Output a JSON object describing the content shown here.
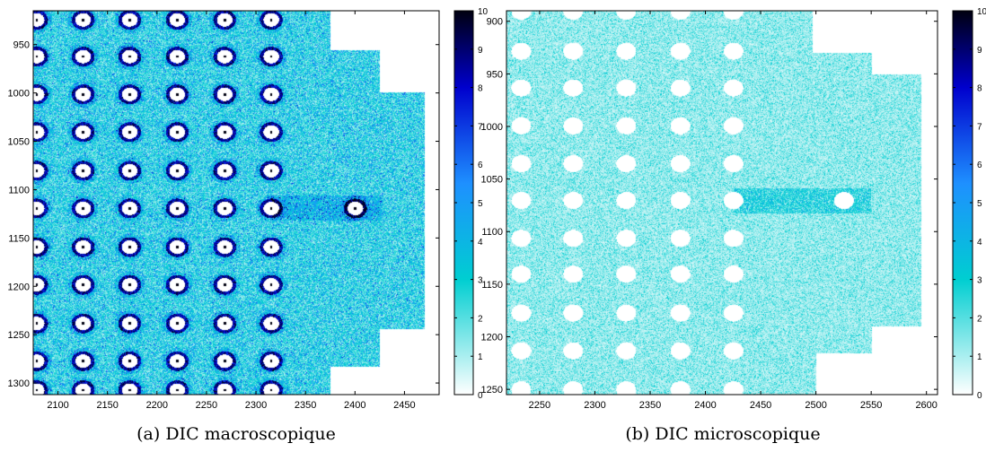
{
  "captions": {
    "a": "(a) DIC macroscopique",
    "b": "(b) DIC microscopique"
  },
  "colormap": [
    "#ffffff",
    "#00ced1",
    "#1e90ff",
    "#0000cd",
    "#000010"
  ],
  "chart_data": [
    {
      "type": "heatmap",
      "title": "",
      "xlabel": "",
      "ylabel": "",
      "xlim": [
        2075,
        2485
      ],
      "ylim": [
        1312,
        915
      ],
      "y_reversed": true,
      "xticks": [
        2100,
        2150,
        2200,
        2250,
        2300,
        2350,
        2400,
        2450
      ],
      "yticks": [
        950,
        1000,
        1050,
        1100,
        1150,
        1200,
        1250,
        1300
      ],
      "colorbar": {
        "min": 0,
        "max": 10,
        "ticks": [
          0,
          1,
          2,
          3,
          4,
          5,
          6,
          7,
          8,
          9,
          10
        ]
      },
      "mean_level": 4.0,
      "hole_columns_x": [
        2078,
        2125,
        2172,
        2220,
        2268,
        2315
      ],
      "hole_rows_y": [
        924,
        962,
        1001,
        1040,
        1080,
        1119,
        1159,
        1198,
        1238,
        1277,
        1307
      ],
      "crack_hole": {
        "x": 2400,
        "y": 1119
      },
      "masked_regions": [
        [
          [
            2375,
            915
          ],
          [
            2485,
            915
          ],
          [
            2485,
            1312
          ],
          [
            2375,
            1312
          ],
          [
            2375,
            1283
          ],
          [
            2425,
            1283
          ],
          [
            2425,
            1244
          ],
          [
            2470,
            1244
          ],
          [
            2470,
            999
          ],
          [
            2425,
            999
          ],
          [
            2425,
            955
          ],
          [
            2375,
            955
          ]
        ]
      ]
    },
    {
      "type": "heatmap",
      "title": "",
      "xlabel": "",
      "ylabel": "",
      "xlim": [
        2220,
        2610
      ],
      "ylim": [
        1255,
        890
      ],
      "y_reversed": true,
      "xticks": [
        2250,
        2300,
        2350,
        2400,
        2450,
        2500,
        2550,
        2600
      ],
      "yticks": [
        900,
        950,
        1000,
        1050,
        1100,
        1150,
        1200,
        1250
      ],
      "colorbar": {
        "min": 0,
        "max": 10,
        "ticks": [
          0,
          1,
          2,
          3,
          4,
          5,
          6,
          7,
          8,
          9,
          10
        ]
      },
      "mean_level": 1.9,
      "hole_columns_x": [
        2233,
        2280,
        2328,
        2377,
        2425
      ],
      "hole_rows_y": [
        890,
        928,
        963,
        999,
        1035,
        1070,
        1106,
        1140,
        1177,
        1213,
        1250
      ],
      "crack_hole": {
        "x": 2525,
        "y": 1070
      },
      "masked_regions": [
        [
          [
            2497,
            890
          ],
          [
            2610,
            890
          ],
          [
            2610,
            1255
          ],
          [
            2500,
            1255
          ],
          [
            2500,
            1215
          ],
          [
            2550,
            1215
          ],
          [
            2550,
            1190
          ],
          [
            2595,
            1190
          ],
          [
            2595,
            950
          ],
          [
            2550,
            950
          ],
          [
            2550,
            930
          ],
          [
            2497,
            930
          ]
        ]
      ]
    }
  ]
}
